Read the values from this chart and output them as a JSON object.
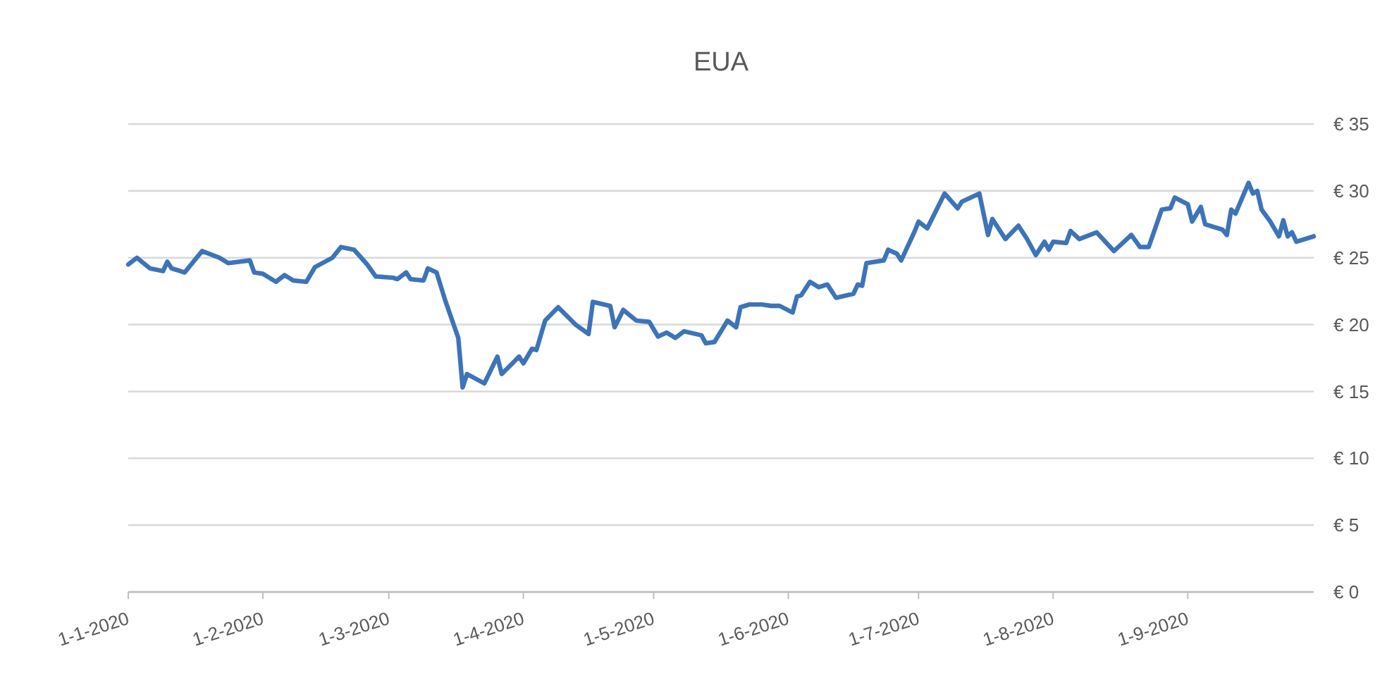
{
  "chart_data": {
    "type": "line",
    "title": "EUA",
    "x": [
      "2020-01-01",
      "2020-01-03",
      "2020-01-06",
      "2020-01-09",
      "2020-01-10",
      "2020-01-11",
      "2020-01-14",
      "2020-01-18",
      "2020-01-22",
      "2020-01-24",
      "2020-01-29",
      "2020-01-30",
      "2020-02-01",
      "2020-02-04",
      "2020-02-06",
      "2020-02-08",
      "2020-02-11",
      "2020-02-13",
      "2020-02-17",
      "2020-02-19",
      "2020-02-22",
      "2020-02-25",
      "2020-02-27",
      "2020-03-02",
      "2020-03-03",
      "2020-03-05",
      "2020-03-06",
      "2020-03-09",
      "2020-03-10",
      "2020-03-12",
      "2020-03-14",
      "2020-03-17",
      "2020-03-18",
      "2020-03-19",
      "2020-03-23",
      "2020-03-26",
      "2020-03-27",
      "2020-03-31",
      "2020-04-01",
      "2020-04-03",
      "2020-04-04",
      "2020-04-06",
      "2020-04-09",
      "2020-04-13",
      "2020-04-16",
      "2020-04-17",
      "2020-04-21",
      "2020-04-22",
      "2020-04-24",
      "2020-04-27",
      "2020-04-30",
      "2020-05-02",
      "2020-05-04",
      "2020-05-06",
      "2020-05-08",
      "2020-05-12",
      "2020-05-13",
      "2020-05-15",
      "2020-05-18",
      "2020-05-20",
      "2020-05-21",
      "2020-05-23",
      "2020-05-26",
      "2020-05-28",
      "2020-05-30",
      "2020-06-02",
      "2020-06-03",
      "2020-06-04",
      "2020-06-06",
      "2020-06-08",
      "2020-06-10",
      "2020-06-12",
      "2020-06-16",
      "2020-06-17",
      "2020-06-18",
      "2020-06-19",
      "2020-06-23",
      "2020-06-24",
      "2020-06-26",
      "2020-06-27",
      "2020-06-30",
      "2020-07-01",
      "2020-07-03",
      "2020-07-07",
      "2020-07-10",
      "2020-07-11",
      "2020-07-15",
      "2020-07-17",
      "2020-07-18",
      "2020-07-21",
      "2020-07-24",
      "2020-07-26",
      "2020-07-28",
      "2020-07-30",
      "2020-07-31",
      "2020-08-01",
      "2020-08-04",
      "2020-08-05",
      "2020-08-07",
      "2020-08-11",
      "2020-08-15",
      "2020-08-19",
      "2020-08-21",
      "2020-08-23",
      "2020-08-26",
      "2020-08-28",
      "2020-08-29",
      "2020-09-01",
      "2020-09-02",
      "2020-09-04",
      "2020-09-05",
      "2020-09-09",
      "2020-09-10",
      "2020-09-11",
      "2020-09-12",
      "2020-09-15",
      "2020-09-16",
      "2020-09-17",
      "2020-09-18",
      "2020-09-20",
      "2020-09-22",
      "2020-09-23",
      "2020-09-24",
      "2020-09-25",
      "2020-09-26",
      "2020-09-30"
    ],
    "series": [
      {
        "color": "#3d74b8",
        "values": [
          24.5,
          25.0,
          24.2,
          24.0,
          24.7,
          24.2,
          23.9,
          25.5,
          25.0,
          24.6,
          24.8,
          23.9,
          23.8,
          23.2,
          23.7,
          23.3,
          23.2,
          24.3,
          25.0,
          25.8,
          25.6,
          24.5,
          23.6,
          23.5,
          23.4,
          23.9,
          23.4,
          23.3,
          24.2,
          23.9,
          21.8,
          19.0,
          15.3,
          16.3,
          15.6,
          17.6,
          16.3,
          17.6,
          17.1,
          18.2,
          18.1,
          20.3,
          21.3,
          20.0,
          19.3,
          21.7,
          21.4,
          19.8,
          21.1,
          20.3,
          20.2,
          19.1,
          19.4,
          19.0,
          19.5,
          19.2,
          18.6,
          18.7,
          20.3,
          19.8,
          21.3,
          21.5,
          21.5,
          21.4,
          21.4,
          20.9,
          22.1,
          22.2,
          23.2,
          22.8,
          23.0,
          22.0,
          22.3,
          23.0,
          22.9,
          24.6,
          24.8,
          25.6,
          25.3,
          24.8,
          26.9,
          27.7,
          27.2,
          29.8,
          28.7,
          29.2,
          29.8,
          26.7,
          27.9,
          26.4,
          27.4,
          26.4,
          25.2,
          26.2,
          25.6,
          26.2,
          26.1,
          27.0,
          26.4,
          26.9,
          25.5,
          26.7,
          25.8,
          25.8,
          28.6,
          28.7,
          29.5,
          29.0,
          27.7,
          28.8,
          27.5,
          27.1,
          26.7,
          28.6,
          28.3,
          30.6,
          29.8,
          30.0,
          28.6,
          27.7,
          26.6,
          27.8,
          26.6,
          26.9,
          26.2,
          26.6
        ]
      }
    ],
    "xlim": [
      "2020-01-01",
      "2020-09-30"
    ],
    "xticks": [
      {
        "value": "2020-01-01",
        "label": "1-1-2020"
      },
      {
        "value": "2020-02-01",
        "label": "1-2-2020"
      },
      {
        "value": "2020-03-01",
        "label": "1-3-2020"
      },
      {
        "value": "2020-04-01",
        "label": "1-4-2020"
      },
      {
        "value": "2020-05-01",
        "label": "1-5-2020"
      },
      {
        "value": "2020-06-01",
        "label": "1-6-2020"
      },
      {
        "value": "2020-07-01",
        "label": "1-7-2020"
      },
      {
        "value": "2020-08-01",
        "label": "1-8-2020"
      },
      {
        "value": "2020-09-01",
        "label": "1-9-2020"
      }
    ],
    "ylim": [
      0,
      35
    ],
    "yticks": [
      {
        "value": 0,
        "label": "€ 0"
      },
      {
        "value": 5,
        "label": "€ 5"
      },
      {
        "value": 10,
        "label": "€ 10"
      },
      {
        "value": 15,
        "label": "€ 15"
      },
      {
        "value": 20,
        "label": "€ 20"
      },
      {
        "value": 25,
        "label": "€ 25"
      },
      {
        "value": 30,
        "label": "€ 30"
      },
      {
        "value": 35,
        "label": "€ 35"
      }
    ],
    "grid": "y"
  }
}
